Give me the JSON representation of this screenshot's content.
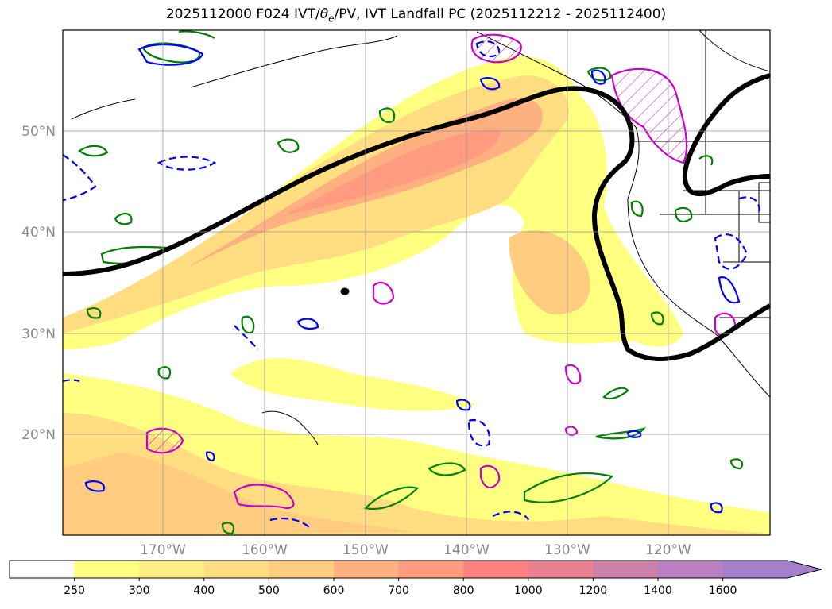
{
  "title": {
    "prefix": "2025112000 F024 IVT/",
    "theta": "θ",
    "theta_sub": "e",
    "suffix": "/PV, IVT Landfall PC (2025112212 - 2025112400)"
  },
  "latitude_labels": [
    "50°N",
    "40°N",
    "30°N",
    "20°N"
  ],
  "longitude_labels": [
    "170°W",
    "160°W",
    "150°W",
    "140°W",
    "130°W",
    "120°W"
  ],
  "colorbar": {
    "ticks": [
      "250",
      "300",
      "400",
      "500",
      "600",
      "700",
      "800",
      "1000",
      "1200",
      "1400",
      "1600"
    ],
    "colors": [
      "#ffffff",
      "#ffff80",
      "#ffee80",
      "#ffdd80",
      "#ffcc80",
      "#ffb080",
      "#ff9c80",
      "#ff8080",
      "#e98090",
      "#cc80a8",
      "#b880c0",
      "#a480cc"
    ]
  },
  "contour_colors": {
    "landfall_pc": "#000000",
    "pv_positive": "#008000",
    "pv_negative": "#0000ff",
    "theta_e": "#cc00cc"
  }
}
